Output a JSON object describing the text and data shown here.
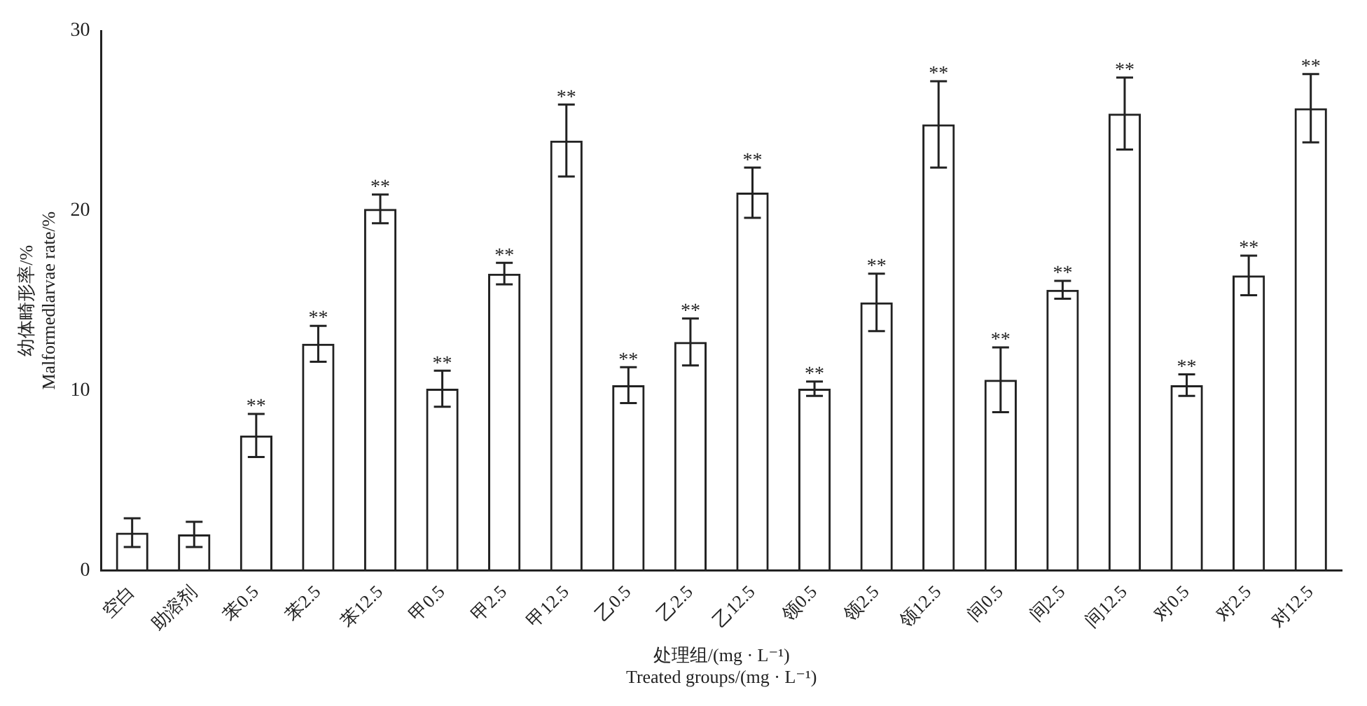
{
  "chart_data": {
    "type": "bar",
    "xlabel": "处理组/(mg · L⁻¹)\nTreated groups/(mg · L⁻¹)",
    "ylabel": "幼体畸形率/%\nMalformedlarvae rate/%",
    "categories": [
      "空白",
      "助溶剂",
      "苯0.5",
      "苯2.5",
      "苯12.5",
      "甲0.5",
      "甲2.5",
      "甲12.5",
      "乙0.5",
      "乙2.5",
      "乙12.5",
      "领0.5",
      "领2.5",
      "领12.5",
      "间0.5",
      "间2.5",
      "间12.5",
      "对0.5",
      "对2.5",
      "对12.5"
    ],
    "values": [
      2.1,
      2.0,
      7.5,
      12.6,
      20.1,
      10.1,
      16.5,
      23.9,
      10.3,
      12.7,
      21.0,
      10.1,
      14.9,
      24.8,
      10.6,
      15.6,
      25.4,
      10.3,
      16.4,
      25.7
    ],
    "errors": [
      0.8,
      0.7,
      1.2,
      1.0,
      0.8,
      1.0,
      0.6,
      2.0,
      1.0,
      1.3,
      1.4,
      0.4,
      1.6,
      2.4,
      1.8,
      0.5,
      2.0,
      0.6,
      1.1,
      1.9
    ],
    "color": "#222222",
    "ylim": [
      0,
      30
    ],
    "yticks": [
      0,
      10,
      20,
      30
    ],
    "grid": false,
    "legend": false,
    "annotations": [
      {
        "text": "**",
        "x": "苯0.5",
        "y": 8.7
      },
      {
        "text": "**",
        "x": "苯2.5",
        "y": 13.6
      },
      {
        "text": "**",
        "x": "苯12.5",
        "y": 20.9
      },
      {
        "text": "**",
        "x": "甲0.5",
        "y": 11.1
      },
      {
        "text": "**",
        "x": "甲2.5",
        "y": 17.1
      },
      {
        "text": "**",
        "x": "甲12.5",
        "y": 25.9
      },
      {
        "text": "**",
        "x": "乙0.5",
        "y": 11.3
      },
      {
        "text": "**",
        "x": "乙2.5",
        "y": 14.0
      },
      {
        "text": "**",
        "x": "乙12.5",
        "y": 22.4
      },
      {
        "text": "**",
        "x": "领0.5",
        "y": 10.5
      },
      {
        "text": "**",
        "x": "领2.5",
        "y": 16.5
      },
      {
        "text": "**",
        "x": "领12.5",
        "y": 27.2
      },
      {
        "text": "**",
        "x": "间0.5",
        "y": 12.4
      },
      {
        "text": "**",
        "x": "间2.5",
        "y": 16.1
      },
      {
        "text": "**",
        "x": "间12.5",
        "y": 27.4
      },
      {
        "text": "**",
        "x": "对0.5",
        "y": 10.9
      },
      {
        "text": "**",
        "x": "对2.5",
        "y": 17.5
      },
      {
        "text": "**",
        "x": "对12.5",
        "y": 27.6
      }
    ]
  }
}
